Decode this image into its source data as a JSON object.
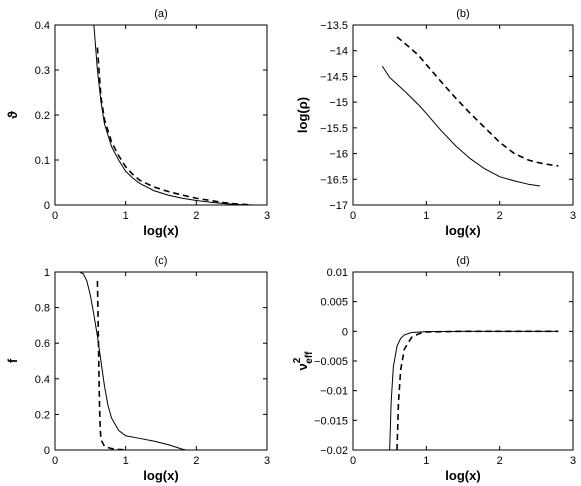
{
  "chart_data": [
    {
      "id": "a",
      "type": "line",
      "title": "(a)",
      "xlabel": "log(x)",
      "ylabel": "ϑ",
      "xlim": [
        0,
        3
      ],
      "ylim": [
        0,
        0.4
      ],
      "xticks": [
        "0",
        "1",
        "2",
        "3"
      ],
      "yticks": [
        "0",
        "0.1",
        "0.2",
        "0.3",
        "0.4"
      ],
      "grid": false,
      "series": [
        {
          "style": "solid",
          "x": [
            0.55,
            0.6,
            0.65,
            0.7,
            0.8,
            0.9,
            1.0,
            1.1,
            1.2,
            1.4,
            1.6,
            1.8,
            2.0,
            2.2,
            2.4,
            2.6,
            2.8
          ],
          "y": [
            0.4,
            0.3,
            0.23,
            0.18,
            0.13,
            0.1,
            0.075,
            0.06,
            0.048,
            0.032,
            0.022,
            0.015,
            0.01,
            0.006,
            0.003,
            0.001,
            0.0
          ]
        },
        {
          "style": "dashed",
          "x": [
            0.6,
            0.65,
            0.7,
            0.8,
            0.9,
            1.0,
            1.1,
            1.2,
            1.4,
            1.6,
            1.8,
            2.0,
            2.2,
            2.4,
            2.6,
            2.8
          ],
          "y": [
            0.35,
            0.24,
            0.19,
            0.14,
            0.11,
            0.085,
            0.068,
            0.055,
            0.04,
            0.03,
            0.022,
            0.015,
            0.01,
            0.005,
            0.002,
            0.0
          ]
        }
      ]
    },
    {
      "id": "b",
      "type": "line",
      "title": "(b)",
      "xlabel": "log(x)",
      "ylabel": "log(ρ)",
      "xlim": [
        0,
        3
      ],
      "ylim": [
        -17,
        -13.5
      ],
      "xticks": [
        "0",
        "1",
        "2",
        "3"
      ],
      "yticks": [
        "−17",
        "−16.5",
        "−16",
        "−15.5",
        "−15",
        "−14.5",
        "−14",
        "−13.5"
      ],
      "grid": false,
      "series": [
        {
          "style": "solid",
          "x": [
            0.4,
            0.5,
            0.6,
            0.7,
            0.8,
            0.9,
            1.0,
            1.2,
            1.4,
            1.6,
            1.8,
            2.0,
            2.2,
            2.4,
            2.55
          ],
          "y": [
            -14.3,
            -14.52,
            -14.65,
            -14.78,
            -14.92,
            -15.06,
            -15.22,
            -15.55,
            -15.85,
            -16.1,
            -16.3,
            -16.45,
            -16.53,
            -16.6,
            -16.63
          ]
        },
        {
          "style": "dashed",
          "x": [
            0.6,
            0.7,
            0.8,
            0.9,
            1.0,
            1.2,
            1.4,
            1.6,
            1.8,
            2.0,
            2.2,
            2.4,
            2.6,
            2.8
          ],
          "y": [
            -13.73,
            -13.85,
            -13.97,
            -14.1,
            -14.27,
            -14.6,
            -14.92,
            -15.22,
            -15.5,
            -15.78,
            -16.0,
            -16.13,
            -16.2,
            -16.24
          ]
        }
      ]
    },
    {
      "id": "c",
      "type": "line",
      "title": "(c)",
      "xlabel": "log(x)",
      "ylabel": "f",
      "xlim": [
        0,
        3
      ],
      "ylim": [
        0,
        1
      ],
      "xticks": [
        "0",
        "1",
        "2",
        "3"
      ],
      "yticks": [
        "0",
        "0.2",
        "0.4",
        "0.6",
        "0.8",
        "1"
      ],
      "grid": false,
      "series": [
        {
          "style": "solid",
          "x": [
            0.35,
            0.4,
            0.45,
            0.5,
            0.55,
            0.6,
            0.65,
            0.7,
            0.75,
            0.8,
            0.9,
            1.0,
            1.2,
            1.4,
            1.6,
            1.8,
            1.85
          ],
          "y": [
            1.0,
            0.99,
            0.95,
            0.87,
            0.76,
            0.64,
            0.5,
            0.36,
            0.25,
            0.18,
            0.11,
            0.08,
            0.065,
            0.05,
            0.03,
            0.005,
            0.0
          ]
        },
        {
          "style": "dashed",
          "x": [
            0.6,
            0.605,
            0.61,
            0.615,
            0.62,
            0.625,
            0.63,
            0.64,
            0.65,
            0.7,
            0.8,
            0.9,
            1.0
          ],
          "y": [
            0.95,
            0.85,
            0.72,
            0.6,
            0.48,
            0.35,
            0.25,
            0.12,
            0.06,
            0.02,
            0.008,
            0.003,
            0.0
          ]
        }
      ]
    },
    {
      "id": "d",
      "type": "line",
      "title": "(d)",
      "xlabel": "log(x)",
      "ylabel": "ν²eff",
      "ylabel_main": "ν",
      "ylabel_sup": "2",
      "ylabel_sub": "eff",
      "xlim": [
        0,
        3
      ],
      "ylim": [
        -0.02,
        0.01
      ],
      "xticks": [
        "0",
        "1",
        "2",
        "3"
      ],
      "yticks": [
        "−0.02",
        "−0.015",
        "−0.01",
        "−0.005",
        "0",
        "0.005",
        "0.01"
      ],
      "grid": false,
      "series": [
        {
          "style": "solid",
          "x": [
            0.5,
            0.52,
            0.55,
            0.6,
            0.65,
            0.7,
            0.8,
            1.0,
            1.5,
            2.0,
            2.5,
            2.8
          ],
          "y": [
            -0.02,
            -0.012,
            -0.006,
            -0.0025,
            -0.0012,
            -0.0006,
            -0.0002,
            -5e-05,
            0.0,
            0.0,
            0.0,
            0.0
          ]
        },
        {
          "style": "dashed",
          "x": [
            0.6,
            0.62,
            0.65,
            0.7,
            0.8,
            0.9,
            1.0,
            1.5,
            2.0,
            2.5,
            2.8
          ],
          "y": [
            -0.02,
            -0.012,
            -0.0065,
            -0.003,
            -0.001,
            -0.0004,
            -0.0001,
            0.0,
            0.0,
            0.0,
            0.0
          ]
        }
      ]
    }
  ]
}
